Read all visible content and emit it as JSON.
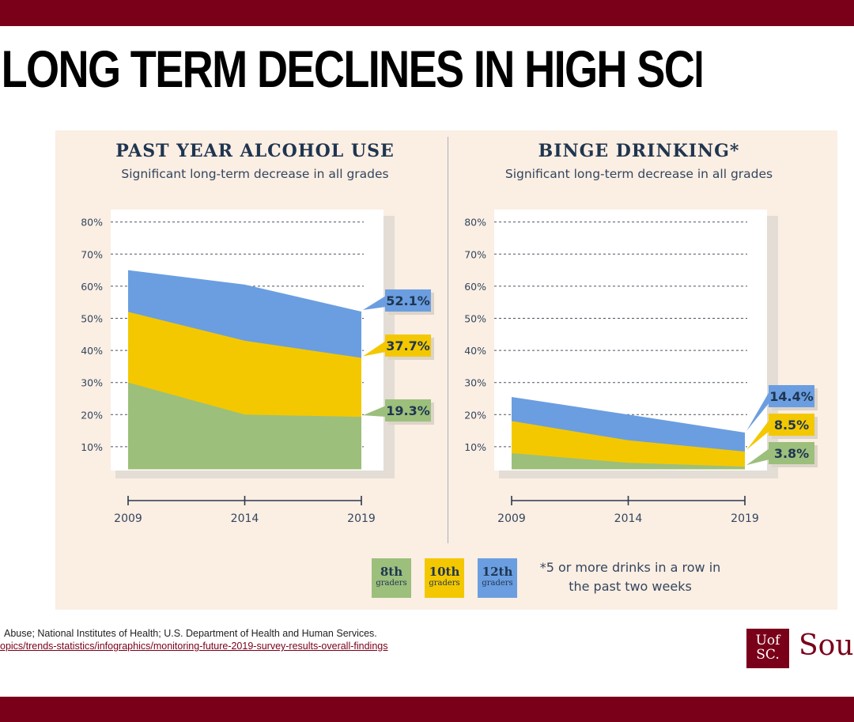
{
  "slide": {
    "title": "LONG TERM DECLINES IN HIGH SCHOOL USE",
    "source_line1": "Abuse; National Institutes of Health; U.S. Department of Health and Human Services.",
    "source_line2": "opics/trends-statistics/infographics/monitoring-future-2019-survey-results-overall-findings",
    "logo_top": "Uof",
    "logo_bottom": "SC.",
    "logo_text": "Sou"
  },
  "colors": {
    "grade8": "#9cbf7c",
    "grade10": "#f3c800",
    "grade12": "#6b9ee0",
    "dark": "#1f3550",
    "maroon": "#7a0019"
  },
  "legend": [
    {
      "label": "8th",
      "sub": "graders",
      "color": "#9cbf7c"
    },
    {
      "label": "10th",
      "sub": "graders",
      "color": "#f3c800"
    },
    {
      "label": "12th",
      "sub": "graders",
      "color": "#6b9ee0"
    }
  ],
  "footnote": "*5 or more drinks in a row in the past two weeks",
  "chart_data": [
    {
      "type": "area",
      "title": "PAST YEAR ALCOHOL USE",
      "subtitle": "Significant long-term decrease in all grades",
      "x": [
        "2009",
        "2014",
        "2019"
      ],
      "yticks": [
        "10%",
        "20%",
        "30%",
        "40%",
        "50%",
        "60%",
        "70%",
        "80%"
      ],
      "ylim": [
        0,
        80
      ],
      "grid": "dashed horizontal",
      "series": [
        {
          "name": "8th graders",
          "values": [
            30.0,
            20.0,
            19.3
          ],
          "label": "19.3%"
        },
        {
          "name": "10th graders",
          "values": [
            52.0,
            43.0,
            37.7
          ],
          "label": "37.7%"
        },
        {
          "name": "12th graders",
          "values": [
            65.0,
            60.5,
            52.1
          ],
          "label": "52.1%"
        }
      ]
    },
    {
      "type": "area",
      "title": "BINGE DRINKING*",
      "subtitle": "Significant long-term decrease in all grades",
      "x": [
        "2009",
        "2014",
        "2019"
      ],
      "yticks": [
        "10%",
        "20%",
        "30%",
        "40%",
        "50%",
        "60%",
        "70%",
        "80%"
      ],
      "ylim": [
        0,
        80
      ],
      "grid": "dashed horizontal",
      "series": [
        {
          "name": "8th graders",
          "values": [
            8.0,
            5.0,
            3.8
          ],
          "label": "3.8%"
        },
        {
          "name": "10th graders",
          "values": [
            18.0,
            12.0,
            8.5
          ],
          "label": "8.5%"
        },
        {
          "name": "12th graders",
          "values": [
            25.5,
            20.0,
            14.4
          ],
          "label": "14.4%"
        }
      ]
    }
  ]
}
